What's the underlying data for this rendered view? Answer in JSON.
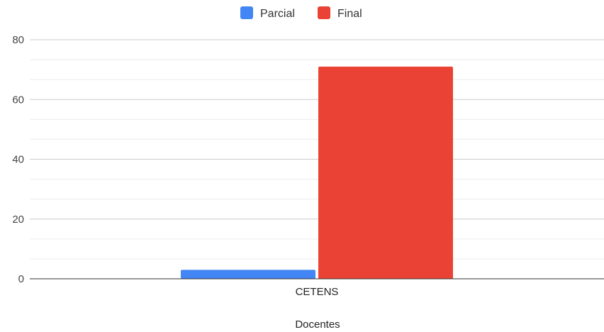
{
  "chart_data": {
    "type": "bar",
    "categories": [
      "CETENS"
    ],
    "series": [
      {
        "name": "Parcial",
        "values": [
          3
        ],
        "color": "#4285f4"
      },
      {
        "name": "Final",
        "values": [
          71
        ],
        "color": "#ea4335"
      }
    ],
    "xlabel": "Docentes",
    "ylabel": "",
    "ylim": [
      0,
      80
    ],
    "yticks": [
      0,
      20,
      40,
      60,
      80
    ],
    "grid": true,
    "minor_grid": true,
    "legend_position": "top-center"
  }
}
